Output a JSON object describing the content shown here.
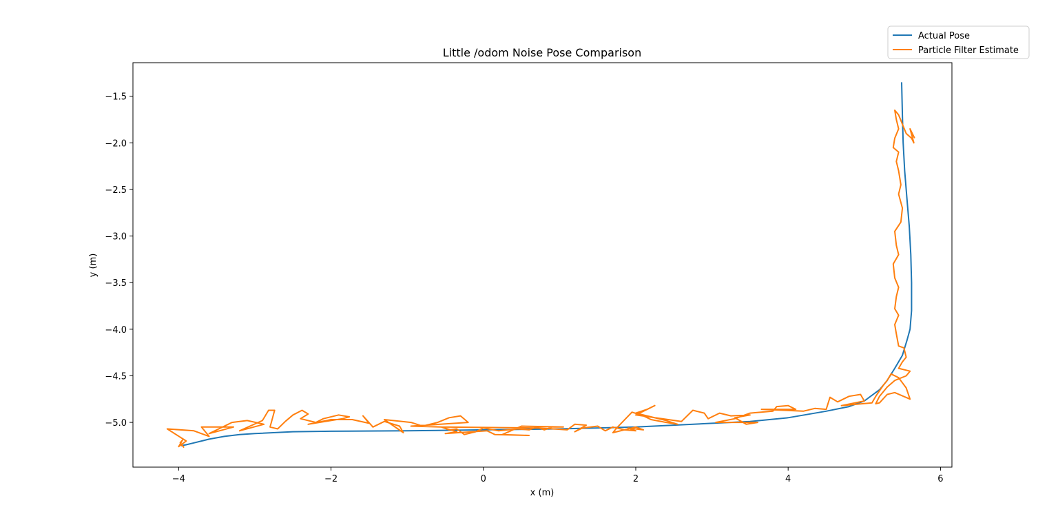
{
  "chart_data": {
    "type": "line",
    "title": "Little /odom Noise Pose Comparison",
    "xlabel": "x (m)",
    "ylabel": "y (m)",
    "xlim": [
      -4.6,
      6.15
    ],
    "ylim": [
      -5.48,
      -1.14
    ],
    "xticks": [
      -4,
      -2,
      0,
      2,
      4,
      6
    ],
    "xtick_labels": [
      "−4",
      "−2",
      "0",
      "2",
      "4",
      "6"
    ],
    "yticks": [
      -1.5,
      -2.0,
      -2.5,
      -3.0,
      -3.5,
      -4.0,
      -4.5,
      -5.0
    ],
    "ytick_labels": [
      "−1.5",
      "−2.0",
      "−2.5",
      "−3.0",
      "−3.5",
      "−4.0",
      "−4.5",
      "−5.0"
    ],
    "grid": false,
    "legend_position": "top-right (outside axes)",
    "series": [
      {
        "name": "Actual Pose",
        "color": "#1f77b4",
        "points": [
          [
            -3.97,
            -5.25
          ],
          [
            -3.9,
            -5.24
          ],
          [
            -3.8,
            -5.22
          ],
          [
            -3.7,
            -5.2
          ],
          [
            -3.6,
            -5.18
          ],
          [
            -3.4,
            -5.15
          ],
          [
            -3.2,
            -5.13
          ],
          [
            -3.0,
            -5.12
          ],
          [
            -2.5,
            -5.1
          ],
          [
            -2.0,
            -5.095
          ],
          [
            -1.0,
            -5.09
          ],
          [
            0.0,
            -5.08
          ],
          [
            1.0,
            -5.07
          ],
          [
            2.0,
            -5.05
          ],
          [
            3.0,
            -5.01
          ],
          [
            3.5,
            -4.99
          ],
          [
            4.0,
            -4.95
          ],
          [
            4.5,
            -4.88
          ],
          [
            4.8,
            -4.83
          ],
          [
            5.0,
            -4.77
          ],
          [
            5.2,
            -4.65
          ],
          [
            5.3,
            -4.55
          ],
          [
            5.4,
            -4.42
          ],
          [
            5.5,
            -4.28
          ],
          [
            5.56,
            -4.12
          ],
          [
            5.6,
            -4.0
          ],
          [
            5.62,
            -3.8
          ],
          [
            5.62,
            -3.5
          ],
          [
            5.61,
            -3.2
          ],
          [
            5.59,
            -2.9
          ],
          [
            5.56,
            -2.6
          ],
          [
            5.53,
            -2.3
          ],
          [
            5.51,
            -2.0
          ],
          [
            5.5,
            -1.7
          ],
          [
            5.49,
            -1.35
          ]
        ]
      },
      {
        "name": "Particle Filter Estimate",
        "color": "#ff7f0e",
        "points": [
          [
            -3.93,
            -5.27
          ],
          [
            -3.98,
            -5.22
          ],
          [
            -3.95,
            -5.19
          ],
          [
            -4.0,
            -5.26
          ],
          [
            -3.9,
            -5.2
          ],
          [
            -4.15,
            -5.07
          ],
          [
            -3.8,
            -5.09
          ],
          [
            -3.6,
            -5.15
          ],
          [
            -3.7,
            -5.05
          ],
          [
            -3.28,
            -5.05
          ],
          [
            -3.6,
            -5.12
          ],
          [
            -3.3,
            -5.0
          ],
          [
            -3.1,
            -4.98
          ],
          [
            -2.88,
            -5.02
          ],
          [
            -3.2,
            -5.09
          ],
          [
            -2.9,
            -4.98
          ],
          [
            -2.82,
            -4.87
          ],
          [
            -2.74,
            -4.87
          ],
          [
            -2.8,
            -5.05
          ],
          [
            -2.7,
            -5.07
          ],
          [
            -2.6,
            -4.99
          ],
          [
            -2.5,
            -4.92
          ],
          [
            -2.38,
            -4.87
          ],
          [
            -2.3,
            -4.91
          ],
          [
            -2.4,
            -4.96
          ],
          [
            -2.2,
            -5.0
          ],
          [
            -2.1,
            -4.96
          ],
          [
            -1.9,
            -4.92
          ],
          [
            -1.76,
            -4.94
          ],
          [
            -1.85,
            -4.96
          ],
          [
            -2.3,
            -5.02
          ],
          [
            -2.0,
            -4.97
          ],
          [
            -1.72,
            -4.97
          ],
          [
            -1.5,
            -5.01
          ],
          [
            -1.58,
            -4.93
          ],
          [
            -1.45,
            -5.05
          ],
          [
            -1.3,
            -4.99
          ],
          [
            -1.1,
            -5.04
          ],
          [
            -1.05,
            -5.11
          ],
          [
            -1.3,
            -4.97
          ],
          [
            -0.95,
            -5.0
          ],
          [
            -0.8,
            -5.04
          ],
          [
            -0.6,
            -5.0
          ],
          [
            -0.45,
            -4.95
          ],
          [
            -0.3,
            -4.93
          ],
          [
            -0.2,
            -5.0
          ],
          [
            -0.95,
            -5.04
          ],
          [
            -0.55,
            -5.05
          ],
          [
            -0.45,
            -5.08
          ],
          [
            -0.35,
            -5.07
          ],
          [
            -0.25,
            -5.13
          ],
          [
            -0.1,
            -5.1
          ],
          [
            0.0,
            -5.06
          ],
          [
            0.2,
            -5.09
          ],
          [
            0.45,
            -5.07
          ],
          [
            0.6,
            -5.08
          ],
          [
            0.7,
            -5.05
          ],
          [
            0.8,
            -5.08
          ],
          [
            0.9,
            -5.05
          ],
          [
            1.05,
            -5.05
          ],
          [
            0.5,
            -5.04
          ],
          [
            0.25,
            -5.13
          ],
          [
            0.6,
            -5.14
          ],
          [
            0.15,
            -5.13
          ],
          [
            0.05,
            -5.09
          ],
          [
            -0.5,
            -5.12
          ],
          [
            -0.35,
            -5.1
          ],
          [
            -0.55,
            -5.05
          ],
          [
            0.75,
            -5.06
          ],
          [
            1.1,
            -5.08
          ],
          [
            1.2,
            -5.02
          ],
          [
            1.35,
            -5.03
          ],
          [
            1.2,
            -5.1
          ],
          [
            1.3,
            -5.06
          ],
          [
            1.5,
            -5.04
          ],
          [
            1.6,
            -5.09
          ],
          [
            1.7,
            -5.05
          ],
          [
            1.85,
            -5.08
          ],
          [
            2.0,
            -5.09
          ],
          [
            1.9,
            -5.06
          ],
          [
            2.1,
            -5.08
          ],
          [
            2.0,
            -5.05
          ],
          [
            1.7,
            -5.11
          ],
          [
            1.75,
            -5.06
          ],
          [
            1.95,
            -4.89
          ],
          [
            2.1,
            -4.93
          ],
          [
            2.2,
            -4.97
          ],
          [
            2.4,
            -5.0
          ],
          [
            2.55,
            -5.02
          ],
          [
            2.4,
            -4.98
          ],
          [
            2.0,
            -4.9
          ],
          [
            2.15,
            -4.86
          ],
          [
            2.25,
            -4.82
          ],
          [
            2.0,
            -4.92
          ],
          [
            2.6,
            -4.99
          ],
          [
            2.75,
            -4.87
          ],
          [
            2.9,
            -4.9
          ],
          [
            2.95,
            -4.96
          ],
          [
            3.1,
            -4.9
          ],
          [
            3.25,
            -4.93
          ],
          [
            3.5,
            -4.92
          ],
          [
            3.3,
            -4.95
          ],
          [
            3.45,
            -5.02
          ],
          [
            3.6,
            -5.0
          ],
          [
            3.05,
            -5.0
          ],
          [
            3.3,
            -4.96
          ],
          [
            3.5,
            -4.9
          ],
          [
            3.8,
            -4.88
          ],
          [
            3.85,
            -4.83
          ],
          [
            4.0,
            -4.82
          ],
          [
            4.1,
            -4.86
          ],
          [
            3.65,
            -4.86
          ],
          [
            4.2,
            -4.88
          ],
          [
            4.35,
            -4.85
          ],
          [
            4.5,
            -4.86
          ],
          [
            4.55,
            -4.73
          ],
          [
            4.65,
            -4.78
          ],
          [
            4.8,
            -4.72
          ],
          [
            4.95,
            -4.7
          ],
          [
            5.0,
            -4.77
          ],
          [
            4.7,
            -4.82
          ],
          [
            5.1,
            -4.79
          ],
          [
            5.15,
            -4.72
          ],
          [
            5.25,
            -4.6
          ],
          [
            5.3,
            -4.55
          ],
          [
            5.35,
            -4.48
          ],
          [
            5.45,
            -4.52
          ],
          [
            5.55,
            -4.63
          ],
          [
            5.6,
            -4.75
          ],
          [
            5.4,
            -4.68
          ],
          [
            5.3,
            -4.7
          ],
          [
            5.2,
            -4.79
          ],
          [
            5.15,
            -4.8
          ],
          [
            5.2,
            -4.72
          ],
          [
            5.3,
            -4.62
          ],
          [
            5.4,
            -4.55
          ],
          [
            5.55,
            -4.5
          ],
          [
            5.6,
            -4.45
          ],
          [
            5.45,
            -4.42
          ],
          [
            5.5,
            -4.35
          ],
          [
            5.55,
            -4.3
          ],
          [
            5.52,
            -4.2
          ],
          [
            5.45,
            -4.18
          ],
          [
            5.42,
            -4.05
          ],
          [
            5.4,
            -3.95
          ],
          [
            5.45,
            -3.85
          ],
          [
            5.4,
            -3.78
          ],
          [
            5.42,
            -3.65
          ],
          [
            5.45,
            -3.55
          ],
          [
            5.4,
            -3.45
          ],
          [
            5.38,
            -3.3
          ],
          [
            5.45,
            -3.2
          ],
          [
            5.42,
            -3.1
          ],
          [
            5.4,
            -2.95
          ],
          [
            5.48,
            -2.85
          ],
          [
            5.5,
            -2.7
          ],
          [
            5.45,
            -2.55
          ],
          [
            5.48,
            -2.45
          ],
          [
            5.45,
            -2.3
          ],
          [
            5.42,
            -2.2
          ],
          [
            5.45,
            -2.1
          ],
          [
            5.38,
            -2.05
          ],
          [
            5.4,
            -1.95
          ],
          [
            5.45,
            -1.85
          ],
          [
            5.42,
            -1.75
          ],
          [
            5.4,
            -1.65
          ],
          [
            5.45,
            -1.7
          ],
          [
            5.5,
            -1.8
          ],
          [
            5.55,
            -1.9
          ],
          [
            5.62,
            -1.95
          ],
          [
            5.65,
            -2.0
          ],
          [
            5.6,
            -1.85
          ],
          [
            5.66,
            -1.95
          ]
        ]
      }
    ]
  }
}
